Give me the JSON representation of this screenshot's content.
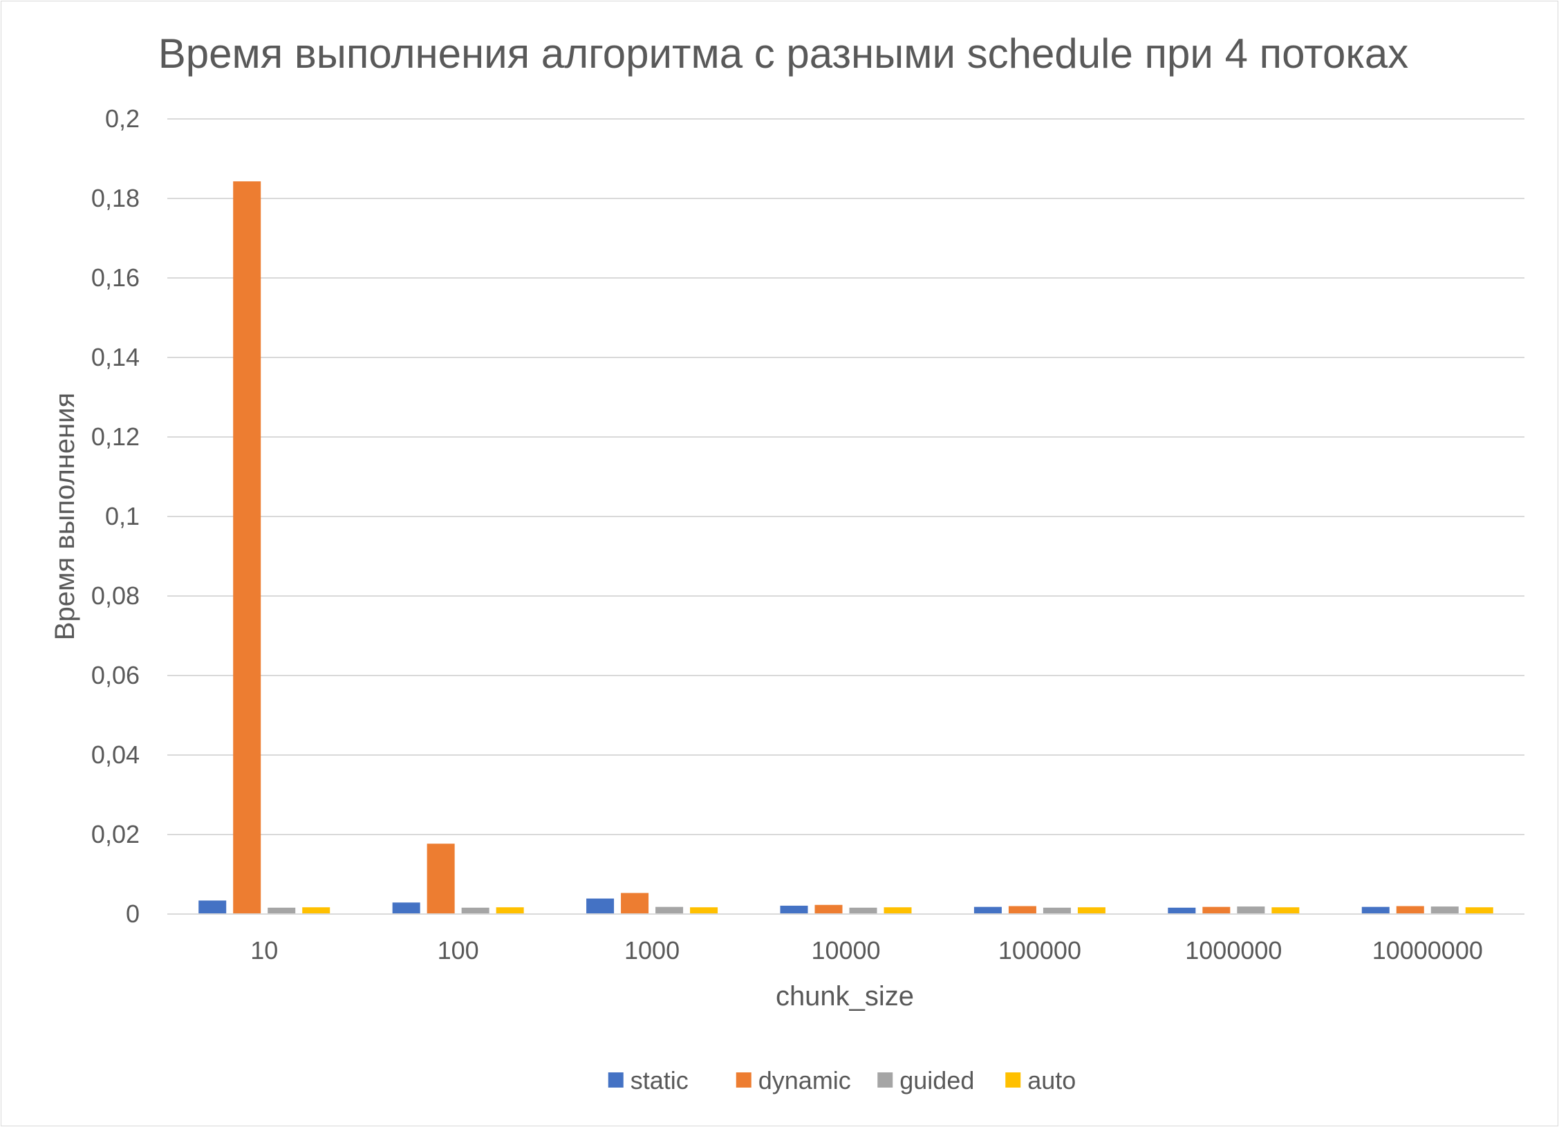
{
  "chart_data": {
    "type": "bar",
    "title": "Время выполнения алгоритма с разными schedule при 4 потоках",
    "xlabel": "chunk_size",
    "ylabel": "Время выполнения",
    "categories": [
      "10",
      "100",
      "1000",
      "10000",
      "100000",
      "1000000",
      "10000000"
    ],
    "ylim": [
      0,
      0.2
    ],
    "yticks": [
      0,
      0.02,
      0.04,
      0.06,
      0.08,
      0.1,
      0.12,
      0.14,
      0.16,
      0.18,
      0.2
    ],
    "ytick_labels": [
      "0",
      "0,02",
      "0,04",
      "0,06",
      "0,08",
      "0,1",
      "0,12",
      "0,14",
      "0,16",
      "0,18",
      "0,2"
    ],
    "grid": true,
    "legend_position": "bottom",
    "series": [
      {
        "name": "static",
        "color": "#4472c4",
        "values": [
          0.0034,
          0.0029,
          0.0039,
          0.0021,
          0.0018,
          0.0016,
          0.0018
        ]
      },
      {
        "name": "dynamic",
        "color": "#ed7d31",
        "values": [
          0.1843,
          0.0177,
          0.0053,
          0.0023,
          0.002,
          0.0018,
          0.002
        ]
      },
      {
        "name": "guided",
        "color": "#a5a5a5",
        "values": [
          0.0016,
          0.0016,
          0.0018,
          0.0016,
          0.0016,
          0.0019,
          0.0019
        ]
      },
      {
        "name": "auto",
        "color": "#ffc000",
        "values": [
          0.0017,
          0.0017,
          0.0017,
          0.0017,
          0.0017,
          0.0017,
          0.0017
        ]
      }
    ]
  }
}
